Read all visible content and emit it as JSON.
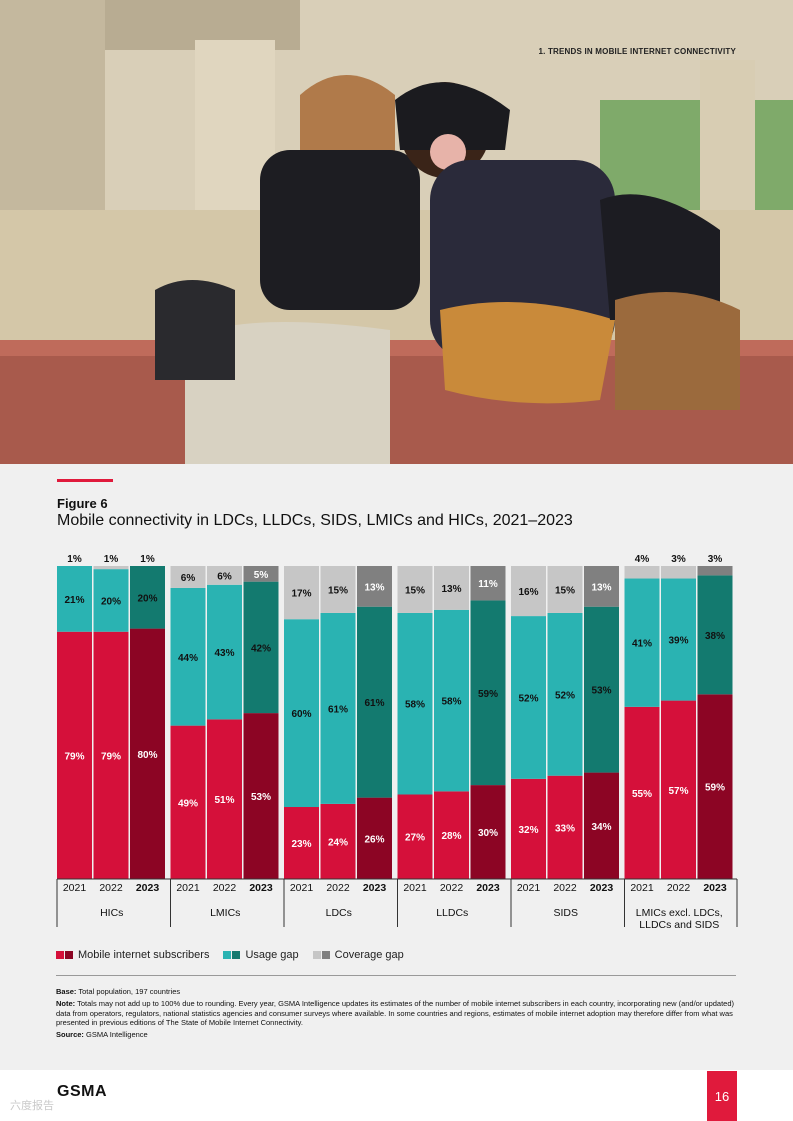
{
  "header": {
    "section": "1. TRENDS IN MOBILE INTERNET CONNECTIVITY"
  },
  "figure": {
    "label": "Figure 6",
    "title": "Mobile connectivity in LDCs, LLDCs, SIDS, LMICs and HICs, 2021–2023"
  },
  "colors": {
    "subscribers": [
      "#d5103a",
      "#8c0524"
    ],
    "usage_gap": [
      "#2ab3b2",
      "#137a6f"
    ],
    "coverage_gap": [
      "#c6c6c6",
      "#808080"
    ]
  },
  "chart_data": {
    "type": "bar",
    "stacked": true,
    "y_unit": "%",
    "ylim": [
      0,
      100
    ],
    "series_order": [
      "Mobile internet subscribers",
      "Usage gap",
      "Coverage gap"
    ],
    "groups": [
      {
        "name": "HICs",
        "years": [
          "2021",
          "2022",
          "2023"
        ],
        "subscribers": [
          79,
          79,
          80
        ],
        "usage_gap": [
          21,
          20,
          20
        ],
        "coverage_gap": [
          1,
          1,
          1
        ]
      },
      {
        "name": "LMICs",
        "years": [
          "2021",
          "2022",
          "2023"
        ],
        "subscribers": [
          49,
          51,
          53
        ],
        "usage_gap": [
          44,
          43,
          42
        ],
        "coverage_gap": [
          6,
          6,
          5
        ]
      },
      {
        "name": "LDCs",
        "years": [
          "2021",
          "2022",
          "2023"
        ],
        "subscribers": [
          23,
          24,
          26
        ],
        "usage_gap": [
          60,
          61,
          61
        ],
        "coverage_gap": [
          17,
          15,
          13
        ]
      },
      {
        "name": "LLDCs",
        "years": [
          "2021",
          "2022",
          "2023"
        ],
        "subscribers": [
          27,
          28,
          30
        ],
        "usage_gap": [
          58,
          58,
          59
        ],
        "coverage_gap": [
          15,
          13,
          11
        ]
      },
      {
        "name": "SIDS",
        "years": [
          "2021",
          "2022",
          "2023"
        ],
        "subscribers": [
          32,
          33,
          34
        ],
        "usage_gap": [
          52,
          52,
          53
        ],
        "coverage_gap": [
          16,
          15,
          13
        ]
      },
      {
        "name": "LMICs excl. LDCs, LLDCs and SIDS",
        "name_lines": [
          "LMICs excl. LDCs,",
          "LLDCs and SIDS"
        ],
        "years": [
          "2021",
          "2022",
          "2023"
        ],
        "subscribers": [
          55,
          57,
          59
        ],
        "usage_gap": [
          41,
          39,
          38
        ],
        "coverage_gap": [
          4,
          3,
          3
        ]
      }
    ]
  },
  "legend": [
    {
      "key": "subscribers",
      "label": "Mobile internet subscribers"
    },
    {
      "key": "usage_gap",
      "label": "Usage gap"
    },
    {
      "key": "coverage_gap",
      "label": "Coverage gap"
    }
  ],
  "notes": {
    "base_label": "Base:",
    "base_text": "Total population, 197 countries",
    "note_label": "Note:",
    "note_text": "Totals may not add up to 100% due to rounding. Every year, GSMA Intelligence updates its estimates of the number of mobile internet subscribers in each country, incorporating new (and/or updated) data from operators, regulators, national statistics agencies and consumer surveys where available. In some countries and regions, estimates of mobile internet adoption may therefore differ from what was presented in previous editions of The State of Mobile Internet Connectivity.",
    "source_label": "Source:",
    "source_text": "GSMA Intelligence"
  },
  "footer": {
    "logo": "GSMA",
    "page": "16",
    "watermark": "六度报告"
  }
}
